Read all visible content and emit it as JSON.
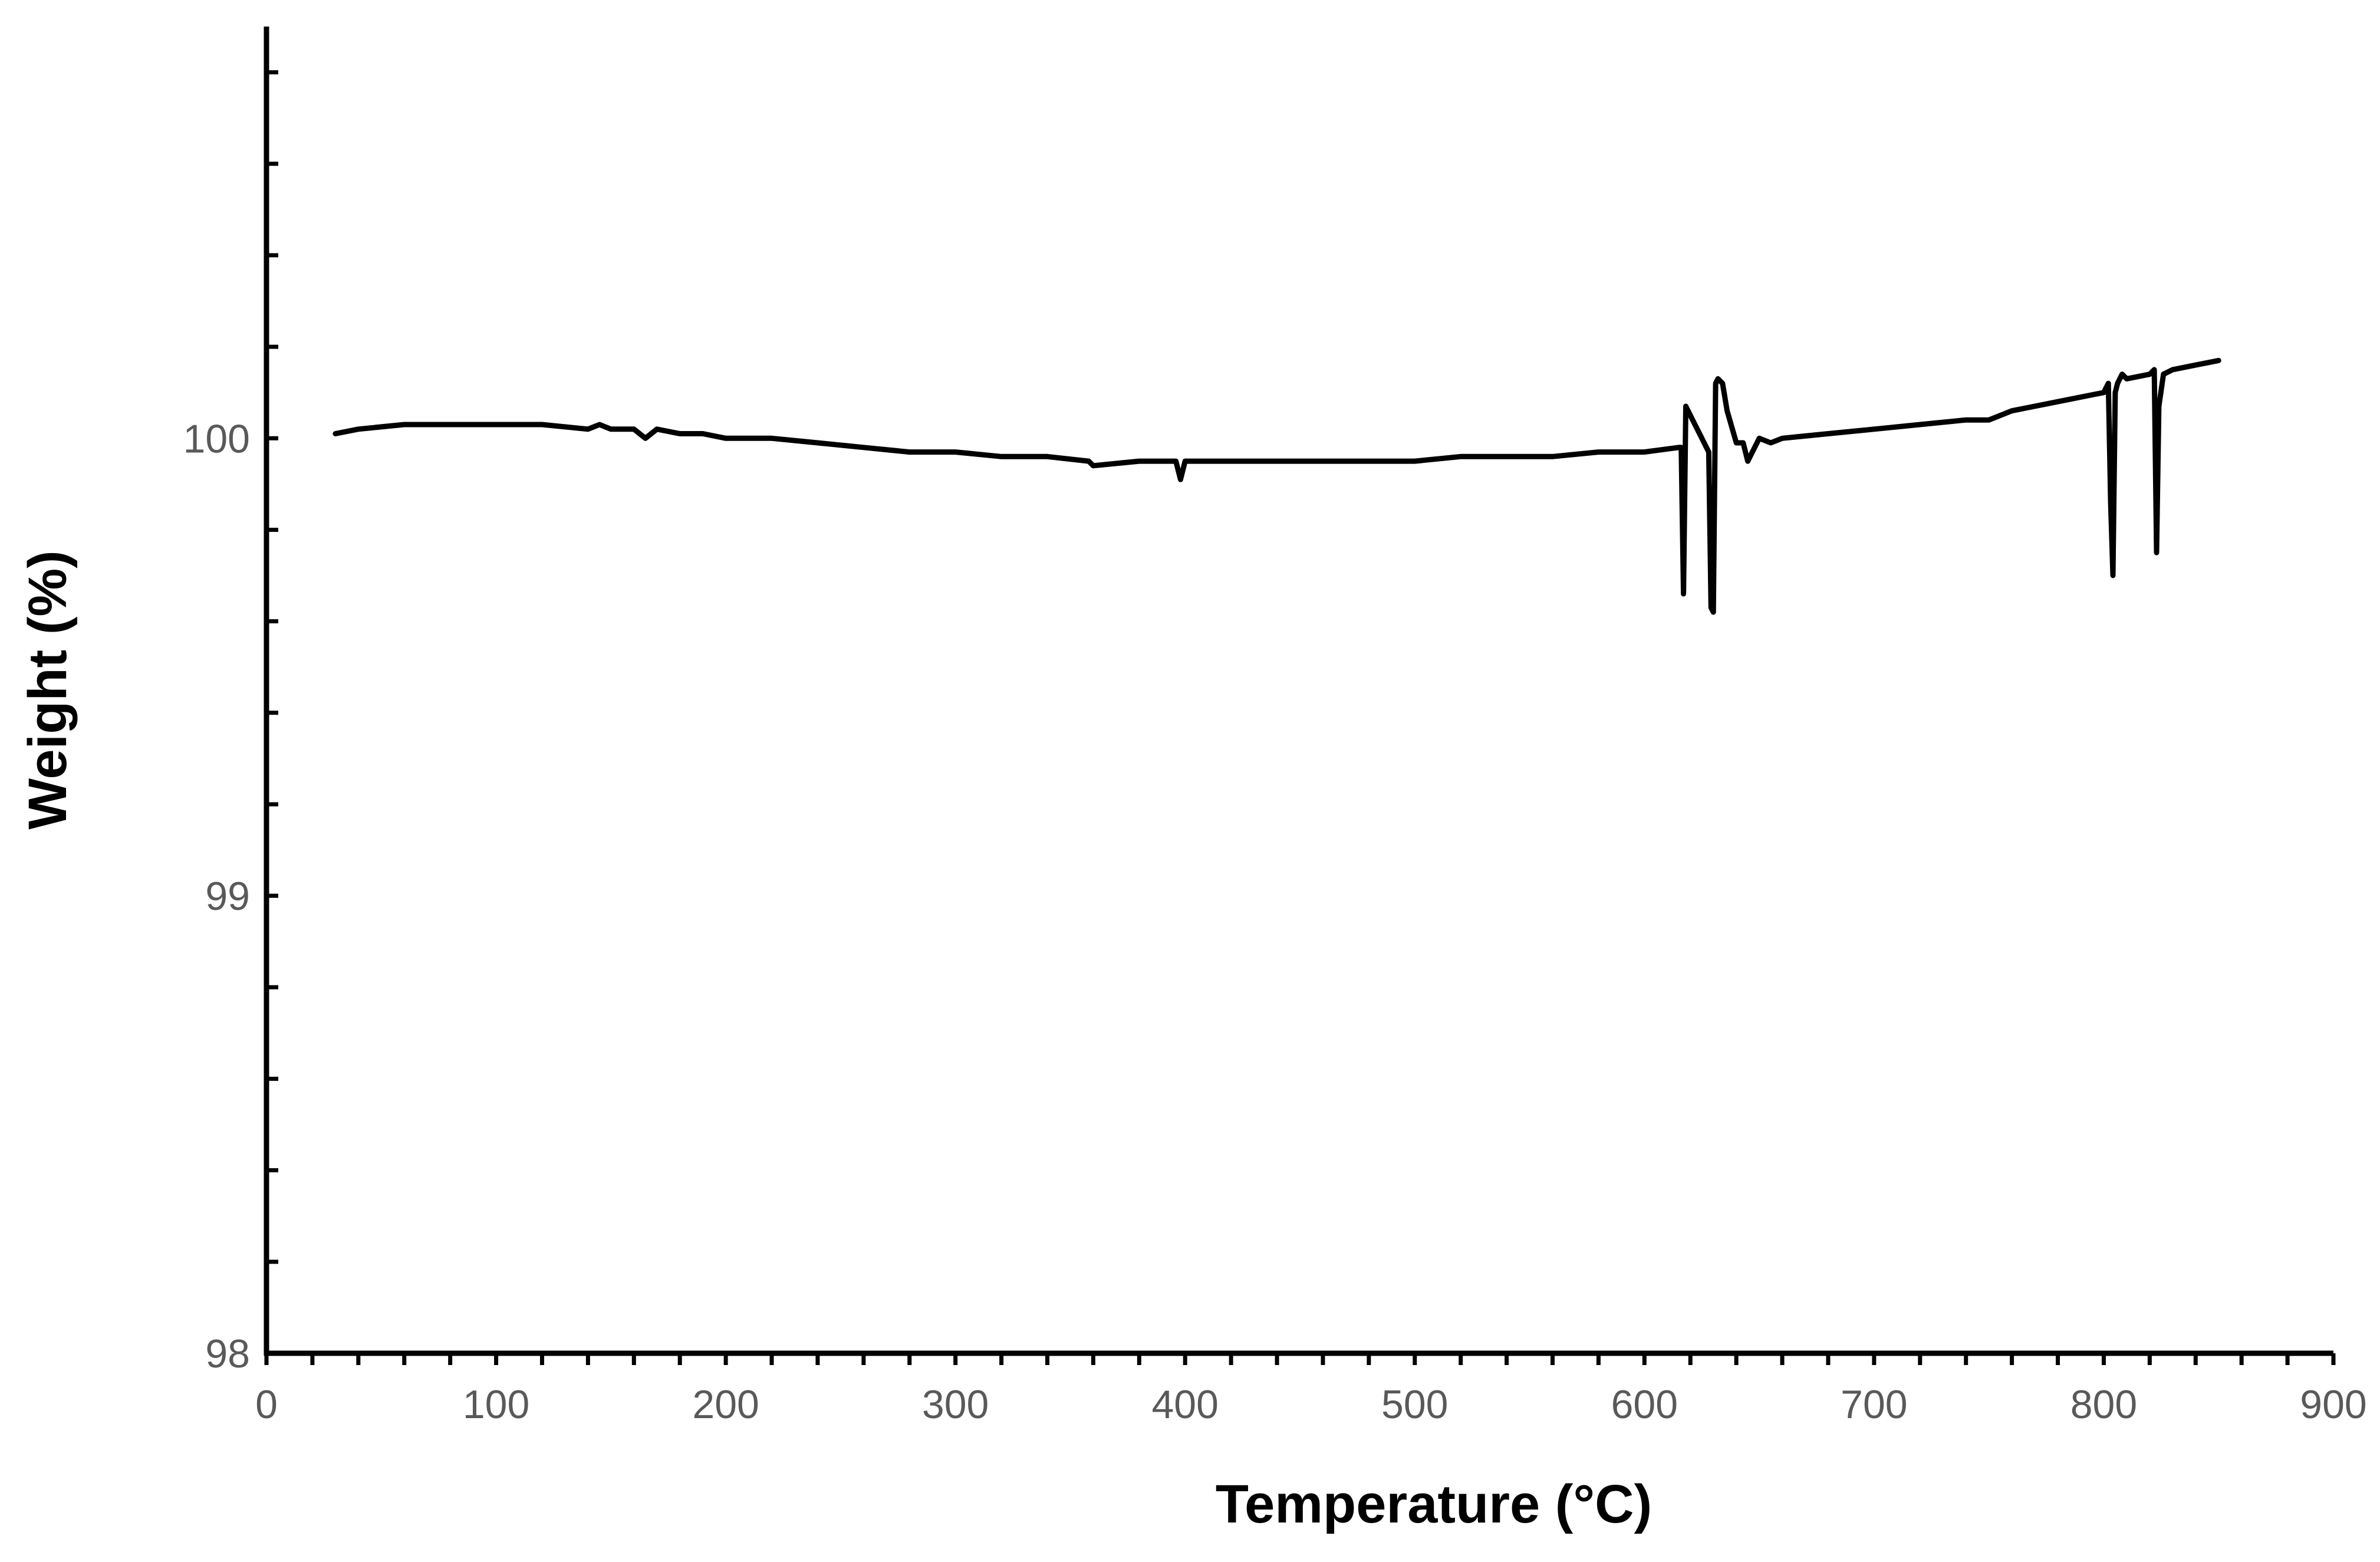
{
  "chart_data": {
    "type": "line",
    "title": "",
    "xlabel": "Temperature (°C)",
    "ylabel": "Weight (%)",
    "xlim": [
      0,
      900
    ],
    "ylim": [
      98,
      100.9
    ],
    "x_ticks": [
      0,
      100,
      200,
      300,
      400,
      500,
      600,
      700,
      800,
      900
    ],
    "x_tick_labels": [
      "0",
      "100",
      "200",
      "300",
      "400",
      "500",
      "600",
      "700",
      "800",
      "900"
    ],
    "y_ticks": [
      98,
      99,
      100
    ],
    "y_tick_labels": [
      "98",
      "99",
      "100"
    ],
    "grid": false,
    "legend": "none",
    "line_color": "#000000",
    "series": [
      {
        "x": [
          30,
          40,
          60,
          80,
          100,
          120,
          140,
          145,
          150,
          160,
          165,
          170,
          180,
          190,
          200,
          220,
          240,
          260,
          280,
          300,
          320,
          340,
          358,
          360,
          380,
          396,
          398,
          400,
          420,
          440,
          460,
          480,
          500,
          520,
          540,
          550,
          560,
          580,
          600,
          615,
          616,
          617,
          618,
          620,
          626,
          628,
          629,
          630,
          631,
          632,
          634,
          636,
          640,
          643,
          645,
          650,
          655,
          660,
          680,
          700,
          720,
          740,
          750,
          760,
          780,
          800,
          802,
          803,
          804,
          805,
          806,
          808,
          810,
          820,
          822,
          823,
          824,
          826,
          830,
          840,
          850
        ],
        "y": [
          100.01,
          100.02,
          100.03,
          100.03,
          100.03,
          100.03,
          100.02,
          100.03,
          100.02,
          100.02,
          100.0,
          100.02,
          100.01,
          100.01,
          100.0,
          100.0,
          99.99,
          99.98,
          99.97,
          99.97,
          99.96,
          99.96,
          99.95,
          99.94,
          99.95,
          99.95,
          99.91,
          99.95,
          99.95,
          99.95,
          99.95,
          99.95,
          99.95,
          99.96,
          99.96,
          99.96,
          99.96,
          99.97,
          99.97,
          99.98,
          99.98,
          99.66,
          100.07,
          100.05,
          99.99,
          99.97,
          99.63,
          99.62,
          100.12,
          100.13,
          100.12,
          100.06,
          99.99,
          99.99,
          99.95,
          100.0,
          99.99,
          100.0,
          100.01,
          100.02,
          100.03,
          100.04,
          100.04,
          100.06,
          100.08,
          100.1,
          100.12,
          99.86,
          99.7,
          100.1,
          100.12,
          100.14,
          100.13,
          100.14,
          100.15,
          99.75,
          100.07,
          100.14,
          100.15,
          100.16,
          100.17
        ]
      }
    ]
  }
}
